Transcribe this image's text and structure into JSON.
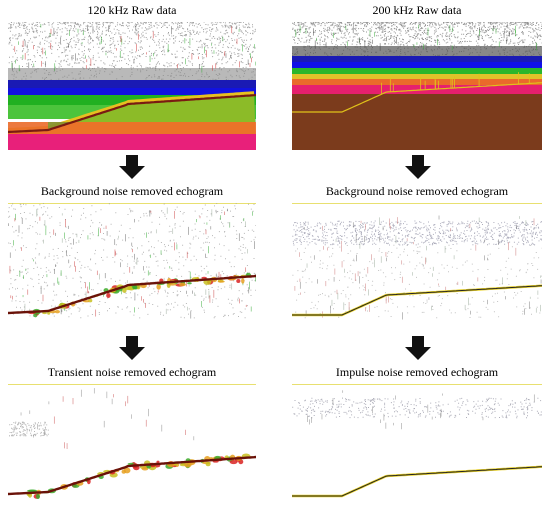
{
  "figure": {
    "columns": [
      {
        "title": "120 kHz Raw data",
        "steps": [
          "Background noise removed echogram",
          "Transient noise removed echogram"
        ]
      },
      {
        "title": "200 kHz Raw data",
        "steps": [
          "Background noise removed echogram",
          "Impulse noise removed echogram"
        ]
      }
    ]
  },
  "colors": {
    "arrow": "#111111",
    "bottom_line_120": "#7a1a12",
    "bottom_line_200": "#d9c21a",
    "brown_200": "#7b3b1c"
  }
}
